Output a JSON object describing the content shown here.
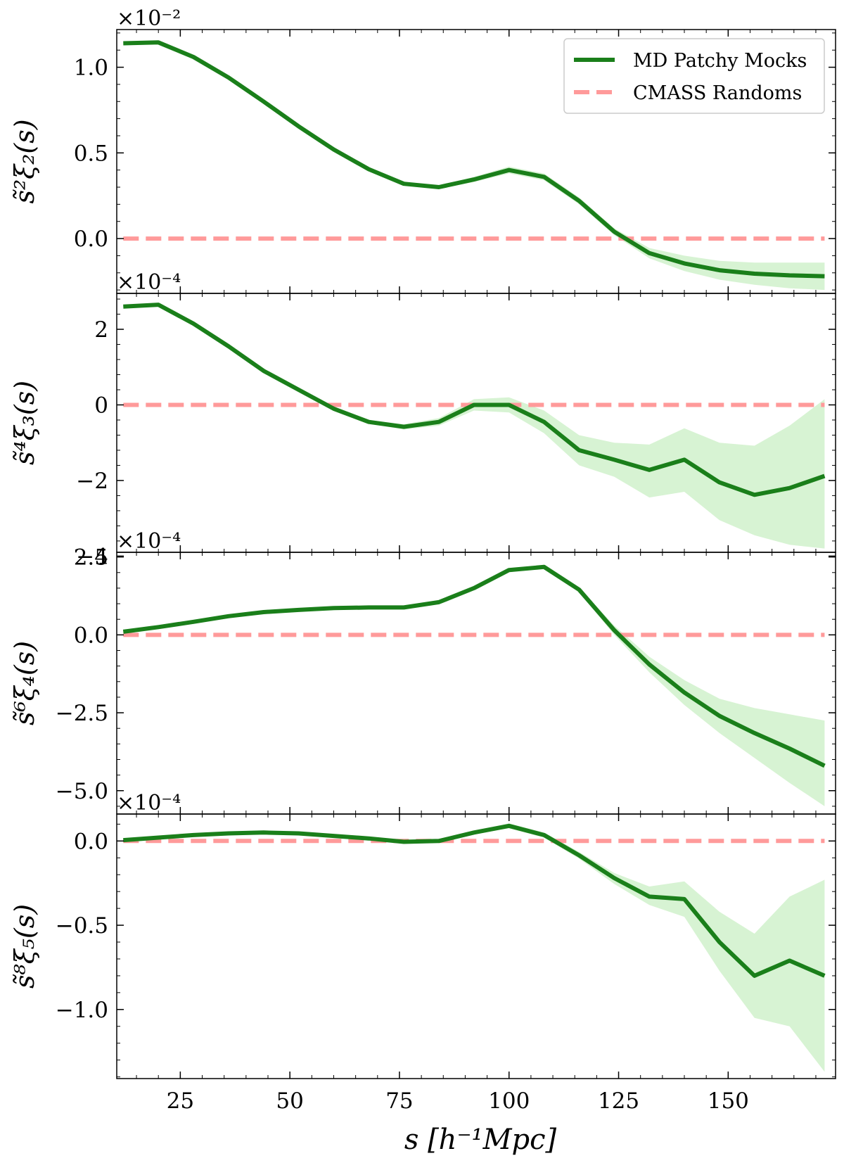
{
  "chart_data": {
    "type": "line",
    "shared_x": {
      "label": "s [h⁻¹Mpc]",
      "ticks": [
        25,
        50,
        75,
        100,
        125,
        150
      ],
      "xlim": [
        10.5,
        174.5
      ]
    },
    "legend": {
      "placement": "top-right",
      "entries": [
        {
          "label": "MD Patchy Mocks",
          "color": "#1a7f1a",
          "style": "solid"
        },
        {
          "label": "CMASS Randoms",
          "color": "#ff9a9a",
          "style": "dashed"
        }
      ]
    },
    "colors": {
      "mocks": "#1a7f1a",
      "band": "#c9efc4",
      "randoms": "#ff9a9a"
    },
    "x": [
      12,
      20,
      28,
      36,
      44,
      52,
      60,
      68,
      76,
      84,
      92,
      100,
      108,
      116,
      124,
      132,
      140,
      148,
      156,
      164,
      172
    ],
    "panels": [
      {
        "ylabel": "s̃²ξ₂(s)",
        "multiplier": "×10⁻²",
        "ylim": [
          -0.32,
          1.22
        ],
        "yticks": [
          1.0,
          0.5,
          0.0
        ],
        "ytick_labels": [
          "1.0",
          "0.5",
          "0.0"
        ],
        "series": [
          {
            "name": "MD Patchy Mocks",
            "values": [
              1.14,
              1.145,
              1.06,
              0.94,
              0.8,
              0.655,
              0.52,
              0.405,
              0.32,
              0.3,
              0.345,
              0.4,
              0.36,
              0.22,
              0.04,
              -0.085,
              -0.145,
              -0.185,
              -0.205,
              -0.215,
              -0.22
            ],
            "band_lower": [
              1.13,
              1.135,
              1.05,
              0.93,
              0.79,
              0.645,
              0.51,
              0.395,
              0.31,
              0.29,
              0.33,
              0.38,
              0.34,
              0.2,
              0.02,
              -0.115,
              -0.19,
              -0.24,
              -0.27,
              -0.29,
              -0.3
            ],
            "band_upper": [
              1.15,
              1.155,
              1.07,
              0.95,
              0.81,
              0.665,
              0.53,
              0.415,
              0.33,
              0.31,
              0.36,
              0.42,
              0.38,
              0.24,
              0.06,
              -0.055,
              -0.1,
              -0.13,
              -0.14,
              -0.14,
              -0.14
            ]
          },
          {
            "name": "CMASS Randoms",
            "values": [
              0,
              0,
              0,
              0,
              0,
              0,
              0,
              0,
              0,
              0,
              0,
              0,
              0,
              0,
              0,
              0,
              0,
              0,
              0,
              0,
              0
            ]
          }
        ]
      },
      {
        "ylabel": "s̃⁴ξ₃(s)",
        "multiplier": "×10⁻⁴",
        "ylim": [
          -3.9,
          2.95
        ],
        "yticks": [
          2,
          0,
          -2,
          -4
        ],
        "ytick_labels": [
          "2",
          "0",
          "−2",
          "−4"
        ],
        "series": [
          {
            "name": "MD Patchy Mocks",
            "values": [
              2.6,
              2.65,
              2.15,
              1.55,
              0.9,
              0.4,
              -0.1,
              -0.45,
              -0.58,
              -0.45,
              0.0,
              0.0,
              -0.45,
              -1.2,
              -1.45,
              -1.72,
              -1.45,
              -2.05,
              -2.38,
              -2.2,
              -1.88
            ],
            "band_lower": [
              2.58,
              2.63,
              2.13,
              1.53,
              0.88,
              0.38,
              -0.12,
              -0.5,
              -0.65,
              -0.55,
              -0.15,
              -0.2,
              -0.75,
              -1.6,
              -1.9,
              -2.45,
              -2.3,
              -3.05,
              -3.45,
              -3.7,
              -3.8
            ],
            "band_upper": [
              2.62,
              2.67,
              2.17,
              1.57,
              0.92,
              0.42,
              -0.08,
              -0.4,
              -0.51,
              -0.35,
              0.15,
              0.2,
              -0.15,
              -0.8,
              -1.0,
              -1.05,
              -0.62,
              -1.0,
              -1.08,
              -0.55,
              0.15
            ]
          },
          {
            "name": "CMASS Randoms",
            "values": [
              0,
              0,
              0,
              0,
              0,
              0,
              0,
              0,
              0,
              0,
              0,
              0,
              0,
              0,
              0,
              0,
              0,
              0,
              0,
              0,
              0
            ]
          }
        ]
      },
      {
        "ylabel": "s̃⁶ξ₄(s)",
        "multiplier": "×10⁻⁴",
        "ylim": [
          -5.75,
          2.65
        ],
        "yticks": [
          2.5,
          0.0,
          -2.5,
          -5.0
        ],
        "ytick_labels": [
          "2.5",
          "0.0",
          "−2.5",
          "−5.0"
        ],
        "series": [
          {
            "name": "MD Patchy Mocks",
            "values": [
              0.1,
              0.25,
              0.42,
              0.6,
              0.73,
              0.8,
              0.86,
              0.88,
              0.88,
              1.05,
              1.5,
              2.08,
              2.18,
              1.45,
              0.15,
              -0.95,
              -1.85,
              -2.6,
              -3.15,
              -3.65,
              -4.2
            ],
            "band_lower": [
              0.08,
              0.23,
              0.4,
              0.58,
              0.71,
              0.78,
              0.84,
              0.86,
              0.86,
              1.03,
              1.47,
              2.05,
              2.15,
              1.38,
              0.0,
              -1.2,
              -2.25,
              -3.15,
              -3.95,
              -4.75,
              -5.5
            ],
            "band_upper": [
              0.12,
              0.27,
              0.44,
              0.62,
              0.75,
              0.82,
              0.88,
              0.9,
              0.9,
              1.07,
              1.53,
              2.11,
              2.21,
              1.52,
              0.3,
              -0.7,
              -1.45,
              -2.05,
              -2.35,
              -2.55,
              -2.75
            ]
          },
          {
            "name": "CMASS Randoms",
            "values": [
              0,
              0,
              0,
              0,
              0,
              0,
              0,
              0,
              0,
              0,
              0,
              0,
              0,
              0,
              0,
              0,
              0,
              0,
              0,
              0,
              0
            ]
          }
        ]
      },
      {
        "ylabel": "s̃⁸ξ₅(s)",
        "multiplier": "×10⁻⁴",
        "ylim": [
          -1.41,
          0.16
        ],
        "yticks": [
          0.0,
          -0.5,
          -1.0
        ],
        "ytick_labels": [
          "0.0",
          "−0.5",
          "−1.0"
        ],
        "series": [
          {
            "name": "MD Patchy Mocks",
            "values": [
              0.005,
              0.02,
              0.035,
              0.045,
              0.05,
              0.045,
              0.03,
              0.015,
              -0.005,
              0.0,
              0.05,
              0.09,
              0.035,
              -0.085,
              -0.22,
              -0.33,
              -0.345,
              -0.6,
              -0.8,
              -0.71,
              -0.8
            ],
            "band_lower": [
              0.0,
              0.015,
              0.03,
              0.04,
              0.045,
              0.04,
              0.025,
              0.01,
              -0.01,
              -0.005,
              0.04,
              0.075,
              0.02,
              -0.105,
              -0.255,
              -0.38,
              -0.45,
              -0.77,
              -1.05,
              -1.1,
              -1.37
            ],
            "band_upper": [
              0.01,
              0.025,
              0.04,
              0.05,
              0.055,
              0.05,
              0.035,
              0.02,
              0.0,
              0.005,
              0.06,
              0.105,
              0.05,
              -0.065,
              -0.19,
              -0.27,
              -0.24,
              -0.42,
              -0.55,
              -0.33,
              -0.23
            ]
          },
          {
            "name": "CMASS Randoms",
            "values": [
              0,
              0,
              0,
              0,
              0,
              0,
              0,
              0,
              0,
              0,
              0,
              0,
              0,
              0,
              0,
              0,
              0,
              0,
              0,
              0,
              0
            ]
          }
        ]
      }
    ]
  }
}
